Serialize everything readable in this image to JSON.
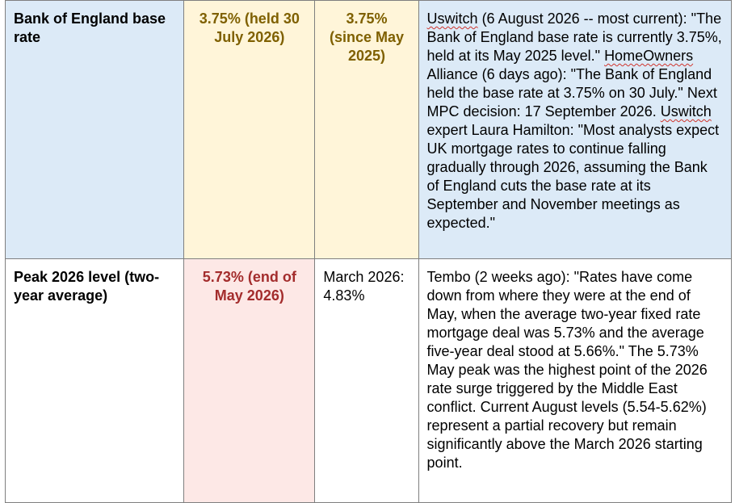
{
  "rows": [
    {
      "label": "Bank of England base rate",
      "value": "3.75% (held 30 July 2026)",
      "previous": "3.75% (since May 2025)",
      "source": {
        "p1": "Uswitch",
        "p2": " (6 August 2026 -- most current): \"The Bank of England base rate is currently 3.75%, held at its May 2025 level.\" ",
        "p3": "HomeOwners",
        "p4": " Alliance (6 days ago): \"The Bank of England held the base rate at 3.75% on 30 July.\" Next MPC decision: 17 September 2026. ",
        "p5": "Uswitch",
        "p6": " expert Laura Hamilton: \"Most analysts expect UK mortgage rates to continue falling gradually through 2026, assuming the Bank of England cuts the base rate at its September and November meetings as expected.\""
      }
    },
    {
      "label": "Peak 2026 level (two-year average)",
      "value": "5.73% (end of May 2026)",
      "previous": "March 2026: 4.83%",
      "source": {
        "text": "Tembo (2 weeks ago): \"Rates have come down from where they were at the end of May, when the average two-year fixed rate mortgage deal was 5.73% and the average five-year deal stood at 5.66%.\" The 5.73% May peak was the highest point of the 2026 rate surge triggered by the Middle East conflict. Current August levels (5.54-5.62%) represent a partial recovery but remain significantly above the March 2026 starting point."
      }
    }
  ],
  "colors": {
    "row1_label_bg": "#dceaf7",
    "row1_value_bg": "#fff5d9",
    "row2_value_bg": "#fde8e6",
    "gold_text": "#7f6000",
    "red_text": "#a32c2c",
    "spell_underline": "#d0342c"
  }
}
